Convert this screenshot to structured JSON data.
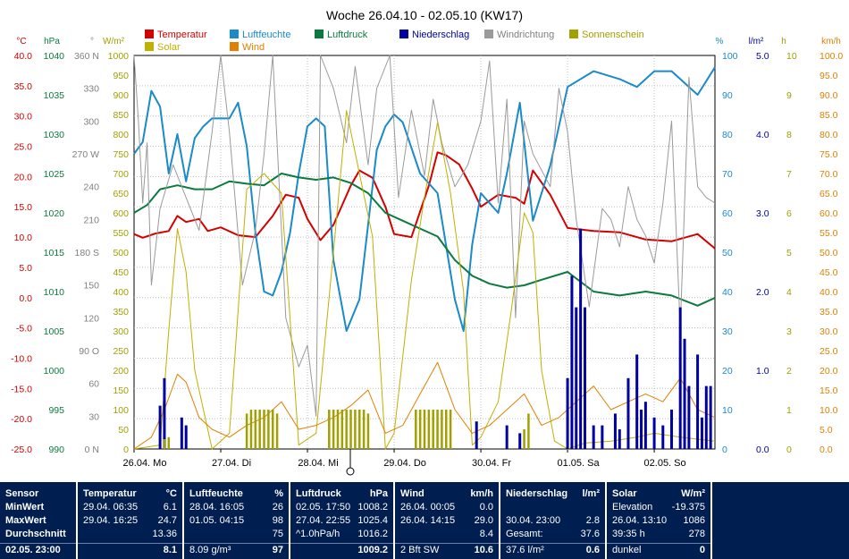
{
  "chart_data": {
    "type": "line",
    "title": "Woche 26.04.10 - 02.05.10 (KW17)",
    "legend": {
      "position": "top",
      "entries": [
        {
          "name": "Temperatur",
          "color": "#d40000"
        },
        {
          "name": "Luftfeuchte",
          "color": "#1a8ac8"
        },
        {
          "name": "Luftdruck",
          "color": "#0a7a3e"
        },
        {
          "name": "Niederschlag",
          "color": "#0000a0"
        },
        {
          "name": "Windrichtung",
          "color": "#9a9a9a"
        },
        {
          "name": "Sonnenschein",
          "color": "#a0a000"
        },
        {
          "name": "Solar",
          "color": "#c0b000"
        },
        {
          "name": "Wind",
          "color": "#e08000"
        }
      ]
    },
    "grid": true,
    "x_labels": [
      "26.04. Mo",
      "27.04. Di",
      "28.04. Mi",
      "29.04. Do",
      "30.04. Fr",
      "01.05. Sa",
      "02.05. So"
    ],
    "axes": {
      "temperature": {
        "unit": "°C",
        "color": "#d40000",
        "range": [
          -25,
          40
        ],
        "ticks": [
          "40.0",
          "35.0",
          "30.0",
          "25.0",
          "20.0",
          "15.0",
          "10.0",
          "5.0",
          "0.0",
          "-5.0",
          "-10.0",
          "-15.0",
          "-20.0",
          "-25.0"
        ]
      },
      "pressure": {
        "unit": "hPa",
        "color": "#0a7a3e",
        "range": [
          990,
          1040
        ],
        "ticks": [
          "1040",
          "1035",
          "1030",
          "1025",
          "1020",
          "1015",
          "1010",
          "1005",
          "1000",
          "995",
          "990"
        ]
      },
      "direction": {
        "unit": "°",
        "color": "#808080",
        "range": [
          0,
          360
        ],
        "ticks": [
          "360 N",
          "330",
          "300",
          "270 W",
          "240",
          "210",
          "180 S",
          "150",
          "120",
          "90 O",
          "60",
          "30",
          "0 N"
        ]
      },
      "solar": {
        "unit": "W/m²",
        "color": "#a0a000",
        "range": [
          0,
          1000
        ],
        "ticks": [
          "1000",
          "950",
          "900",
          "850",
          "800",
          "750",
          "700",
          "650",
          "600",
          "550",
          "500",
          "450",
          "400",
          "350",
          "300",
          "250",
          "200",
          "150",
          "100",
          "50",
          "0"
        ]
      },
      "humidity": {
        "unit": "%",
        "color": "#1a8ac8",
        "range": [
          0,
          100
        ],
        "ticks": [
          "100",
          "90",
          "80",
          "70",
          "60",
          "50",
          "40",
          "30",
          "20",
          "10",
          "0"
        ]
      },
      "rain": {
        "unit": "l/m²",
        "color": "#0000a0",
        "range": [
          0,
          5
        ],
        "ticks": [
          "5.0",
          "4.0",
          "3.0",
          "2.0",
          "1.0",
          "0.0"
        ]
      },
      "sunshine": {
        "unit": "h",
        "color": "#a0a000",
        "range": [
          0,
          10
        ],
        "ticks": [
          "10",
          "9",
          "8",
          "7",
          "6",
          "5",
          "4",
          "3",
          "2",
          "1",
          "0"
        ]
      },
      "wind": {
        "unit": "km/h",
        "color": "#e08000",
        "range": [
          0,
          100
        ],
        "ticks": [
          "100.0",
          "95.0",
          "90.0",
          "85.0",
          "80.0",
          "75.0",
          "70.0",
          "65.0",
          "60.0",
          "55.0",
          "50.0",
          "45.0",
          "40.0",
          "35.0",
          "30.0",
          "25.0",
          "20.0",
          "15.0",
          "10.0",
          "5.0",
          "0.0"
        ]
      }
    },
    "series": [
      {
        "name": "Temperatur",
        "axis": "temperature",
        "x": [
          0,
          0.1,
          0.25,
          0.4,
          0.5,
          0.6,
          0.75,
          0.85,
          1.0,
          1.2,
          1.4,
          1.6,
          1.75,
          1.9,
          2.0,
          2.15,
          2.3,
          2.5,
          2.6,
          2.75,
          2.9,
          3.0,
          3.2,
          3.4,
          3.5,
          3.6,
          3.75,
          3.9,
          4.0,
          4.2,
          4.4,
          4.5,
          4.6,
          4.8,
          5.0,
          5.3,
          5.6,
          5.9,
          6.2,
          6.5,
          6.7
        ],
        "y": [
          10.5,
          9.9,
          10.6,
          11,
          13.5,
          12.5,
          13,
          11,
          11.6,
          10.3,
          10,
          13.5,
          17,
          16.5,
          13,
          9.5,
          12,
          18.5,
          21,
          19.8,
          15,
          10.5,
          10,
          18.5,
          24,
          23.5,
          22,
          18,
          15,
          17,
          16.5,
          15.5,
          21,
          17,
          11.5,
          11,
          10.8,
          9.6,
          9.3,
          10.5,
          8.1
        ]
      },
      {
        "name": "Luftfeuchte",
        "axis": "humidity",
        "x": [
          0,
          0.1,
          0.2,
          0.3,
          0.4,
          0.5,
          0.6,
          0.7,
          0.8,
          0.9,
          1.0,
          1.1,
          1.2,
          1.3,
          1.4,
          1.5,
          1.6,
          1.7,
          1.8,
          1.9,
          2.0,
          2.1,
          2.2,
          2.3,
          2.45,
          2.6,
          2.8,
          2.9,
          3.0,
          3.1,
          3.3,
          3.5,
          3.7,
          3.8,
          3.9,
          4.0,
          4.2,
          4.3,
          4.45,
          4.6,
          4.8,
          5.0,
          5.3,
          5.6,
          5.8,
          6.0,
          6.2,
          6.5,
          6.7
        ],
        "y": [
          75,
          78,
          91,
          87,
          70,
          80,
          68,
          79,
          82,
          84,
          84,
          84,
          88,
          77,
          55,
          40,
          39,
          45,
          55,
          70,
          82,
          84,
          82,
          48,
          30,
          38,
          76,
          82,
          85,
          83,
          70,
          65,
          38,
          30,
          52,
          65,
          60,
          70,
          88,
          58,
          72,
          92,
          96,
          94,
          92,
          96,
          96,
          90,
          97
        ]
      },
      {
        "name": "Luftdruck",
        "axis": "pressure",
        "x": [
          0,
          0.15,
          0.3,
          0.5,
          0.7,
          0.9,
          1.1,
          1.3,
          1.5,
          1.7,
          1.9,
          2.1,
          2.3,
          2.5,
          2.7,
          2.9,
          3.1,
          3.3,
          3.5,
          3.7,
          3.9,
          4.1,
          4.3,
          4.5,
          4.7,
          5.0,
          5.3,
          5.6,
          5.9,
          6.2,
          6.5,
          6.7
        ],
        "y": [
          1020,
          1021,
          1023,
          1023.5,
          1023,
          1023,
          1024,
          1023.7,
          1023.5,
          1025,
          1024.5,
          1024.2,
          1024.5,
          1023.8,
          1022.5,
          1020,
          1019,
          1018,
          1017,
          1014,
          1012,
          1011,
          1010.5,
          1010.8,
          1011.5,
          1012.5,
          1010,
          1009.5,
          1010,
          1009.5,
          1008.2,
          1009.2
        ]
      },
      {
        "name": "Windrichtung",
        "axis": "direction",
        "x": [
          0,
          0.05,
          0.1,
          0.15,
          0.2,
          0.3,
          0.45,
          0.6,
          0.75,
          0.9,
          1.0,
          1.1,
          1.25,
          1.4,
          1.5,
          1.6,
          1.75,
          1.9,
          2.0,
          2.1,
          2.15,
          2.3,
          2.45,
          2.55,
          2.7,
          2.8,
          2.95,
          3.05,
          3.2,
          3.35,
          3.45,
          3.55,
          3.7,
          3.85,
          4.0,
          4.1,
          4.2,
          4.3,
          4.4,
          4.5,
          4.6,
          4.8,
          4.9,
          5.0,
          5.1,
          5.25,
          5.4,
          5.5,
          5.6,
          5.7,
          5.8,
          5.9,
          6.0,
          6.1,
          6.2,
          6.3,
          6.4,
          6.5,
          6.6,
          6.7
        ],
        "y": [
          360,
          300,
          225,
          280,
          150,
          220,
          260,
          230,
          200,
          290,
          360,
          290,
          150,
          200,
          270,
          360,
          120,
          75,
          95,
          30,
          360,
          330,
          280,
          350,
          260,
          330,
          360,
          230,
          310,
          250,
          320,
          280,
          240,
          260,
          300,
          355,
          225,
          320,
          120,
          300,
          270,
          240,
          330,
          290,
          210,
          130,
          220,
          210,
          185,
          240,
          210,
          195,
          170,
          225,
          300,
          110,
          340,
          240,
          230,
          225
        ]
      },
      {
        "name": "Solar",
        "axis": "solar",
        "x": [
          0,
          0.3,
          0.4,
          0.5,
          0.6,
          0.7,
          0.9,
          1.1,
          1.3,
          1.5,
          1.7,
          1.9,
          2.1,
          2.3,
          2.45,
          2.6,
          2.75,
          2.9,
          3.0,
          3.2,
          3.35,
          3.5,
          3.65,
          3.8,
          3.9,
          4.0,
          4.2,
          4.35,
          4.5,
          4.6,
          4.7,
          4.85,
          5.0,
          5.2,
          5.5,
          5.8,
          6.0,
          6.3,
          6.7
        ],
        "y": [
          0,
          10,
          300,
          560,
          450,
          200,
          0,
          40,
          660,
          700,
          650,
          10,
          40,
          500,
          860,
          700,
          540,
          0,
          40,
          430,
          640,
          830,
          650,
          400,
          10,
          30,
          120,
          350,
          600,
          550,
          200,
          20,
          0,
          15,
          20,
          30,
          40,
          30,
          20
        ]
      },
      {
        "name": "Wind",
        "axis": "wind",
        "x": [
          0,
          0.2,
          0.35,
          0.5,
          0.6,
          0.75,
          0.9,
          1.1,
          1.3,
          1.5,
          1.7,
          1.9,
          2.1,
          2.3,
          2.5,
          2.7,
          2.9,
          3.1,
          3.3,
          3.5,
          3.7,
          3.9,
          4.1,
          4.3,
          4.5,
          4.7,
          4.9,
          5.1,
          5.3,
          5.5,
          5.7,
          5.9,
          6.1,
          6.3,
          6.5,
          6.7
        ],
        "y": [
          0,
          3,
          10,
          19,
          17,
          8,
          5,
          3,
          6,
          8,
          12,
          5,
          6,
          8,
          11,
          15,
          4,
          6,
          14,
          22,
          10,
          4,
          6,
          10,
          14,
          6,
          8,
          12,
          16,
          10,
          12,
          14,
          12,
          18,
          10,
          8
        ]
      },
      {
        "name": "Niederschlag",
        "axis": "rain",
        "kind": "bar",
        "x": [
          0.3,
          0.35,
          0.55,
          0.6,
          3.95,
          4.3,
          4.45,
          5.0,
          5.05,
          5.1,
          5.15,
          5.2,
          5.3,
          5.4,
          5.55,
          5.6,
          5.7,
          5.8,
          5.85,
          5.9,
          6.0,
          6.1,
          6.2,
          6.3,
          6.35,
          6.4,
          6.5,
          6.55,
          6.6,
          6.65
        ],
        "y": [
          0.55,
          0.9,
          0.4,
          0.3,
          0.35,
          0.3,
          0.2,
          0.9,
          2.2,
          1.8,
          2.8,
          1.8,
          0.3,
          0.3,
          0.45,
          0.25,
          0.9,
          1.2,
          0.5,
          0.6,
          0.4,
          0.3,
          0.5,
          1.8,
          1.4,
          0.8,
          1.2,
          0.4,
          0.8,
          0.8
        ]
      },
      {
        "name": "Sonnenschein",
        "axis": "sunshine",
        "kind": "bar",
        "x": [
          0.35,
          0.4,
          1.3,
          1.35,
          1.4,
          1.45,
          1.5,
          1.55,
          1.6,
          1.65,
          2.25,
          2.3,
          2.35,
          2.4,
          2.45,
          2.5,
          2.55,
          2.6,
          2.65,
          2.7,
          3.25,
          3.3,
          3.35,
          3.4,
          3.45,
          3.5,
          3.55,
          3.6,
          3.65,
          4.5,
          4.55
        ],
        "y": [
          0.25,
          0.3,
          0.9,
          1.0,
          1.0,
          1.0,
          1.0,
          1.0,
          1.0,
          0.9,
          1.0,
          1.0,
          1.0,
          1.0,
          1.0,
          1.0,
          1.0,
          1.0,
          1.0,
          0.9,
          1.0,
          1.0,
          1.0,
          1.0,
          1.0,
          1.0,
          1.0,
          1.0,
          1.0,
          0.5,
          0.9
        ]
      }
    ]
  },
  "stats": {
    "sensor": {
      "h": "Sensor",
      "r1": "MinWert",
      "r2": "MaxWert",
      "r3": "Durchschnitt",
      "r4": "02.05. 23:00"
    },
    "temperatur": {
      "h": "Temperatur",
      "u": "°C",
      "min_t": "29.04. 06:35",
      "min_v": "6.1",
      "max_t": "29.04. 16:25",
      "max_v": "24.7",
      "avg": "13.36",
      "cur": "8.1"
    },
    "luftfeuchte": {
      "h": "Luftfeuchte",
      "u": "%",
      "min_t": "28.04. 16:05",
      "min_v": "26",
      "max_t": "01.05. 04:15",
      "max_v": "98",
      "avg": "75",
      "extra": "8.09 g/m³",
      "cur": "97"
    },
    "luftdruck": {
      "h": "Luftdruck",
      "u": "hPa",
      "min_t": "02.05. 17:50",
      "min_v": "1008.2",
      "max_t": "27.04. 22:55",
      "max_v": "1025.4",
      "trend_t": "^1.0hPa/h",
      "avg": "1016.2",
      "cur": "1009.2"
    },
    "wind": {
      "h": "Wind",
      "u": "km/h",
      "min_t": "26.04. 00:05",
      "min_v": "0.0",
      "max_t": "26.04. 14:15",
      "max_v": "29.0",
      "avg": "8.4",
      "extra": "2 Bft SW",
      "cur": "10.6"
    },
    "niederschlag": {
      "h": "Niederschlag",
      "u": "l/m²",
      "max_t": "30.04. 23:00",
      "max_v": "2.8",
      "sum_l": "Gesamt:",
      "sum_v": "37.6",
      "extra": "37.6 l/m²",
      "cur": "0.6"
    },
    "solar": {
      "h": "Solar",
      "u": "W/m²",
      "r1_l": "Elevation",
      "r1_v": "-19.375",
      "r2_t": "26.04. 13:10",
      "r2_v": "1086",
      "r3_l": "39:35 h",
      "r3_v": "278",
      "r4_l": "dunkel",
      "r4_v": "0"
    }
  }
}
